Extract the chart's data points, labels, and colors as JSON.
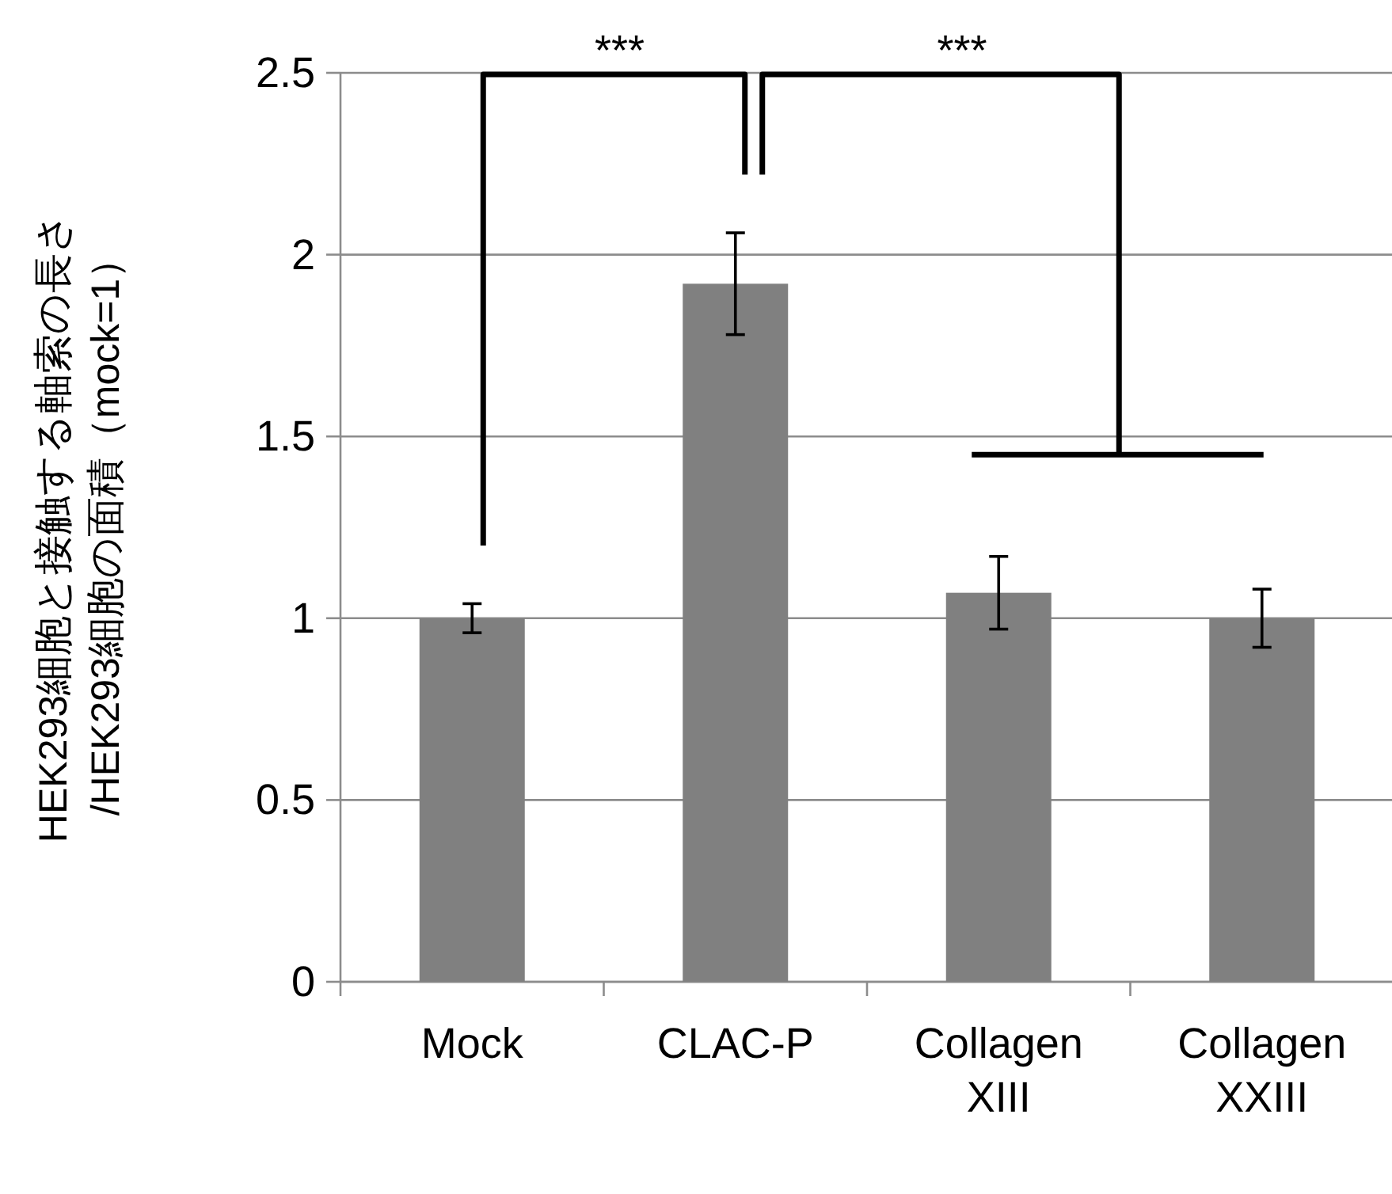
{
  "chart_data": {
    "type": "bar",
    "ylabel": "HEK293細胞と接触する軸索の長さ\n/HEK293細胞の面積（mock=1）",
    "categories": [
      "Mock",
      "CLAC-P",
      "Collagen XIII",
      "Collagen XXIII"
    ],
    "values": [
      1.0,
      1.92,
      1.07,
      1.0
    ],
    "errors": [
      0.04,
      0.14,
      0.1,
      0.08
    ],
    "color": "#808080",
    "ylim": [
      0,
      2.5
    ],
    "yticks": [
      0,
      0.5,
      1,
      1.5,
      2,
      2.5
    ],
    "grid": "y",
    "annotations": [
      "***",
      "***"
    ]
  }
}
